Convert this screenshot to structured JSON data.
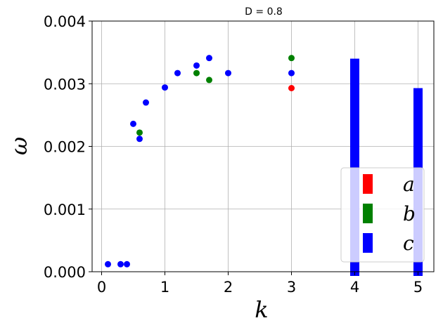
{
  "chart_data": {
    "type": "scatter",
    "title": "D = 0.8",
    "xlabel": "k",
    "ylabel": "ω",
    "xlim": [
      -0.15,
      5.25
    ],
    "ylim": [
      0,
      0.004
    ],
    "xticks": [
      0,
      1,
      2,
      3,
      4,
      5
    ],
    "yticks": [
      0.0,
      0.001,
      0.002,
      0.003,
      0.004
    ],
    "ytick_labels": [
      "0.000",
      "0.001",
      "0.002",
      "0.003",
      "0.004"
    ],
    "grid": true,
    "legend": {
      "placement": "lower-right",
      "entries": [
        {
          "label": "a",
          "color": "#ff0000"
        },
        {
          "label": "b",
          "color": "#008000"
        },
        {
          "label": "c",
          "color": "#0000ff"
        }
      ]
    },
    "series": [
      {
        "name": "a",
        "color": "#ff0000",
        "points": [
          [
            3.0,
            0.00293
          ]
        ]
      },
      {
        "name": "b",
        "color": "#008000",
        "points": [
          [
            0.6,
            0.00222
          ],
          [
            1.5,
            0.00317
          ],
          [
            1.7,
            0.00306
          ],
          [
            3.0,
            0.00341
          ]
        ]
      },
      {
        "name": "c",
        "color": "#0000ff",
        "points": [
          [
            0.1,
            0.00012
          ],
          [
            0.3,
            0.00012
          ],
          [
            0.4,
            0.00012
          ],
          [
            0.5,
            0.00236
          ],
          [
            0.6,
            0.00212
          ],
          [
            0.7,
            0.0027
          ],
          [
            1.0,
            0.00294
          ],
          [
            1.2,
            0.00317
          ],
          [
            1.5,
            0.00329
          ],
          [
            1.7,
            0.00341
          ],
          [
            2.0,
            0.00317
          ],
          [
            3.0,
            0.00317
          ]
        ]
      }
    ],
    "bars": [
      {
        "series": "c",
        "x": 4.0,
        "value": 0.0034,
        "color": "#0000ff"
      },
      {
        "series": "c",
        "x": 5.0,
        "value": 0.00293,
        "color": "#0000ff"
      }
    ]
  }
}
